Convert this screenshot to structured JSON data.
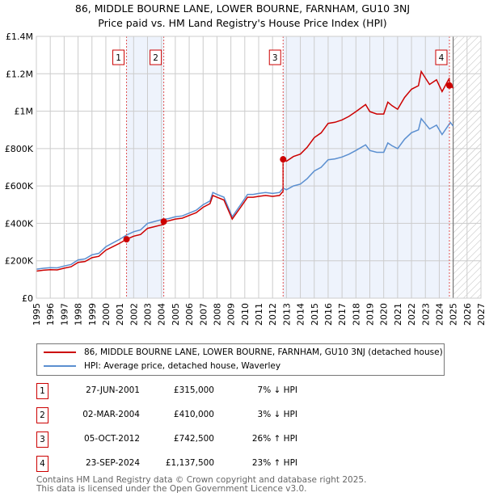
{
  "chart_data": {
    "type": "line",
    "title": "86, MIDDLE BOURNE LANE, LOWER BOURNE, FARNHAM, GU10 3NJ",
    "subtitle": "Price paid vs. HM Land Registry's House Price Index (HPI)",
    "xlim": [
      1995,
      2027
    ],
    "ylim": [
      0,
      1400000
    ],
    "x_ticks": [
      "1995",
      "1996",
      "1997",
      "1998",
      "1999",
      "2000",
      "2001",
      "2002",
      "2003",
      "2004",
      "2005",
      "2006",
      "2007",
      "2008",
      "2009",
      "2010",
      "2011",
      "2012",
      "2013",
      "2014",
      "2015",
      "2016",
      "2017",
      "2018",
      "2019",
      "2020",
      "2021",
      "2022",
      "2023",
      "2024",
      "2025",
      "2026",
      "2027"
    ],
    "y_ticks": [
      {
        "v": 0,
        "label": "£0"
      },
      {
        "v": 200000,
        "label": "£200K"
      },
      {
        "v": 400000,
        "label": "£400K"
      },
      {
        "v": 600000,
        "label": "£600K"
      },
      {
        "v": 800000,
        "label": "£800K"
      },
      {
        "v": 1000000,
        "label": "£1M"
      },
      {
        "v": 1200000,
        "label": "£1.2M"
      },
      {
        "v": 1400000,
        "label": "£1.4M"
      }
    ],
    "grid": true,
    "forecast_start": 2025.0,
    "colors": {
      "price": "#cc0000",
      "hpi": "#5b8fd0",
      "shade": "#eef3fc"
    },
    "hpi_series": {
      "name": "HPI: Average price, detached house, Waverley",
      "x": [
        1995,
        1995.5,
        1996,
        1996.5,
        1997,
        1997.5,
        1998,
        1998.5,
        1999,
        1999.5,
        2000,
        2000.5,
        2001,
        2001.5,
        2002,
        2002.5,
        2003,
        2003.5,
        2004,
        2004.5,
        2005,
        2005.5,
        2006,
        2006.5,
        2007,
        2007.5,
        2007.7,
        2008,
        2008.5,
        2009.1,
        2009.7,
        2010.2,
        2010.6,
        2011,
        2011.5,
        2012,
        2012.5,
        2012.76,
        2013,
        2013.5,
        2014,
        2014.5,
        2015,
        2015.5,
        2016,
        2016.5,
        2017,
        2017.5,
        2018,
        2018.7,
        2019,
        2019.5,
        2020,
        2020.3,
        2020.6,
        2021,
        2021.5,
        2022,
        2022.5,
        2022.7,
        2023.3,
        2023.8,
        2024.2,
        2024.8,
        2025
      ],
      "y": [
        155000,
        160000,
        163000,
        162000,
        172000,
        180000,
        205000,
        210000,
        232000,
        240000,
        275000,
        295000,
        315000,
        338000,
        355000,
        365000,
        400000,
        410000,
        420000,
        425000,
        435000,
        440000,
        455000,
        470000,
        500000,
        520000,
        565000,
        555000,
        540000,
        435000,
        500000,
        555000,
        555000,
        560000,
        565000,
        560000,
        565000,
        588000,
        580000,
        600000,
        610000,
        640000,
        680000,
        700000,
        740000,
        745000,
        755000,
        770000,
        790000,
        820000,
        790000,
        780000,
        780000,
        830000,
        815000,
        800000,
        850000,
        885000,
        900000,
        960000,
        905000,
        925000,
        875000,
        940000,
        920000
      ]
    },
    "price_series": {
      "name": "86, MIDDLE BOURNE LANE, LOWER BOURNE, FARNHAM, GU10 3NJ (detached house)"
    },
    "sales": [
      {
        "n": "1",
        "x": 2001.49,
        "date": "27-JUN-2001",
        "price": 315000,
        "price_label": "£315,000",
        "hpi_label": "7% ↓ HPI"
      },
      {
        "n": "2",
        "x": 2004.17,
        "date": "02-MAR-2004",
        "price": 410000,
        "price_label": "£410,000",
        "hpi_label": "3% ↓ HPI"
      },
      {
        "n": "3",
        "x": 2012.76,
        "date": "05-OCT-2012",
        "price": 742500,
        "price_label": "£742,500",
        "hpi_label": "26% ↑ HPI"
      },
      {
        "n": "4",
        "x": 2024.73,
        "date": "23-SEP-2024",
        "price": 1137500,
        "price_label": "£1,137,500",
        "hpi_label": "23% ↑ HPI"
      }
    ]
  },
  "footer": {
    "line1": "Contains HM Land Registry data © Crown copyright and database right 2025.",
    "line2": "This data is licensed under the Open Government Licence v3.0."
  }
}
